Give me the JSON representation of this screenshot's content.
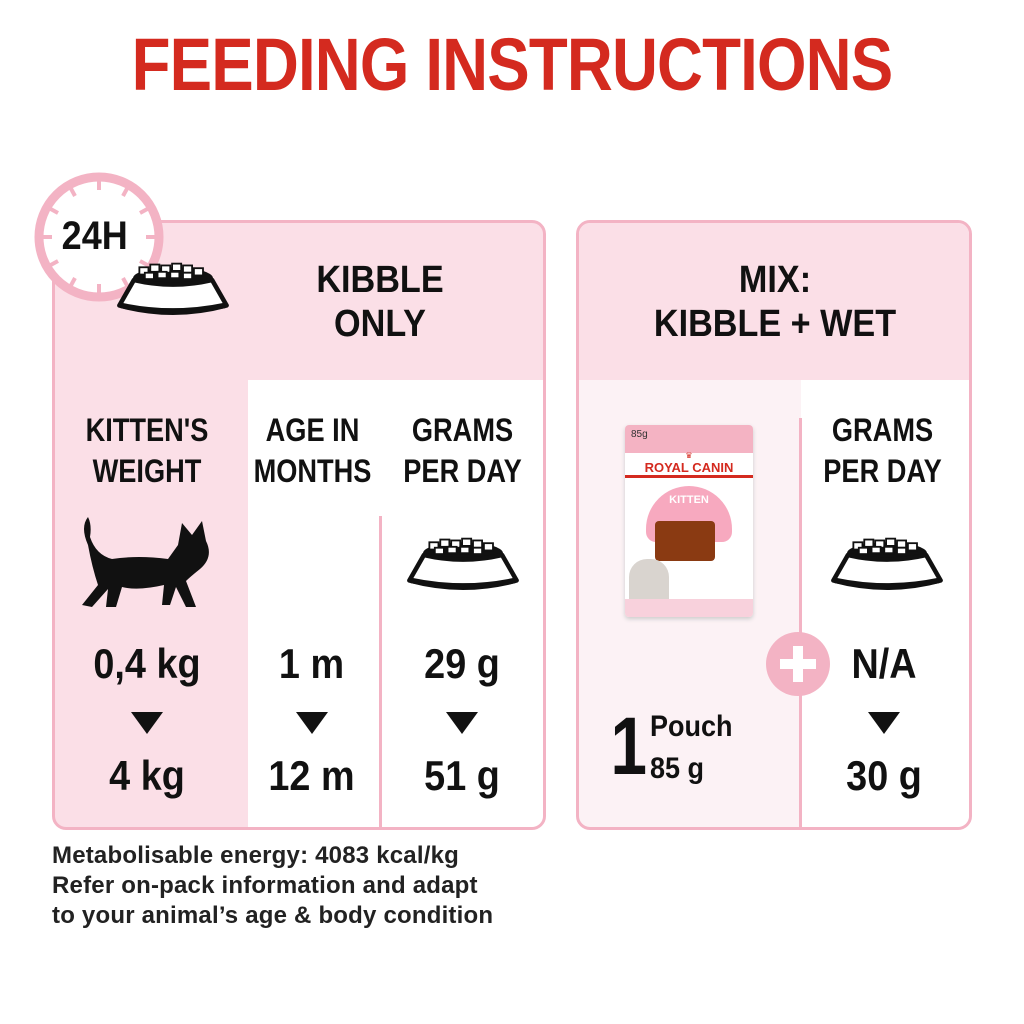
{
  "title": "FEEDING INSTRUCTIONS",
  "badge": "24H",
  "kibble": {
    "heading": [
      "KIBBLE",
      "ONLY"
    ],
    "columns": [
      {
        "header": [
          "KITTEN'S",
          "WEIGHT"
        ],
        "from": "0,4 kg",
        "to": "4 kg",
        "icon": "kitten-silhouette-icon"
      },
      {
        "header": [
          "AGE IN",
          "MONTHS"
        ],
        "from": "1 m",
        "to": "12 m"
      },
      {
        "header": [
          "GRAMS",
          "PER DAY"
        ],
        "from": "29 g",
        "to": "51 g",
        "icon": "food-bowl-icon"
      }
    ]
  },
  "mix": {
    "heading": [
      "MIX:",
      "KIBBLE + WET"
    ],
    "pouch": {
      "brand": "ROYAL CANIN",
      "variant": "KITTEN",
      "weight_label": "85g",
      "count": "1",
      "unit": "Pouch",
      "amount": "85 g"
    },
    "grams": {
      "header": [
        "GRAMS",
        "PER DAY"
      ],
      "from": "N/A",
      "to": "30 g"
    }
  },
  "footer": [
    "Metabolisable energy: 4083 kcal/kg",
    "Refer on-pack information and adapt",
    "to your animal’s age & body condition"
  ],
  "colors": {
    "title": "#d42a1f",
    "pink_border": "#f3b3c4",
    "pink_fill": "#fbdfe7"
  }
}
